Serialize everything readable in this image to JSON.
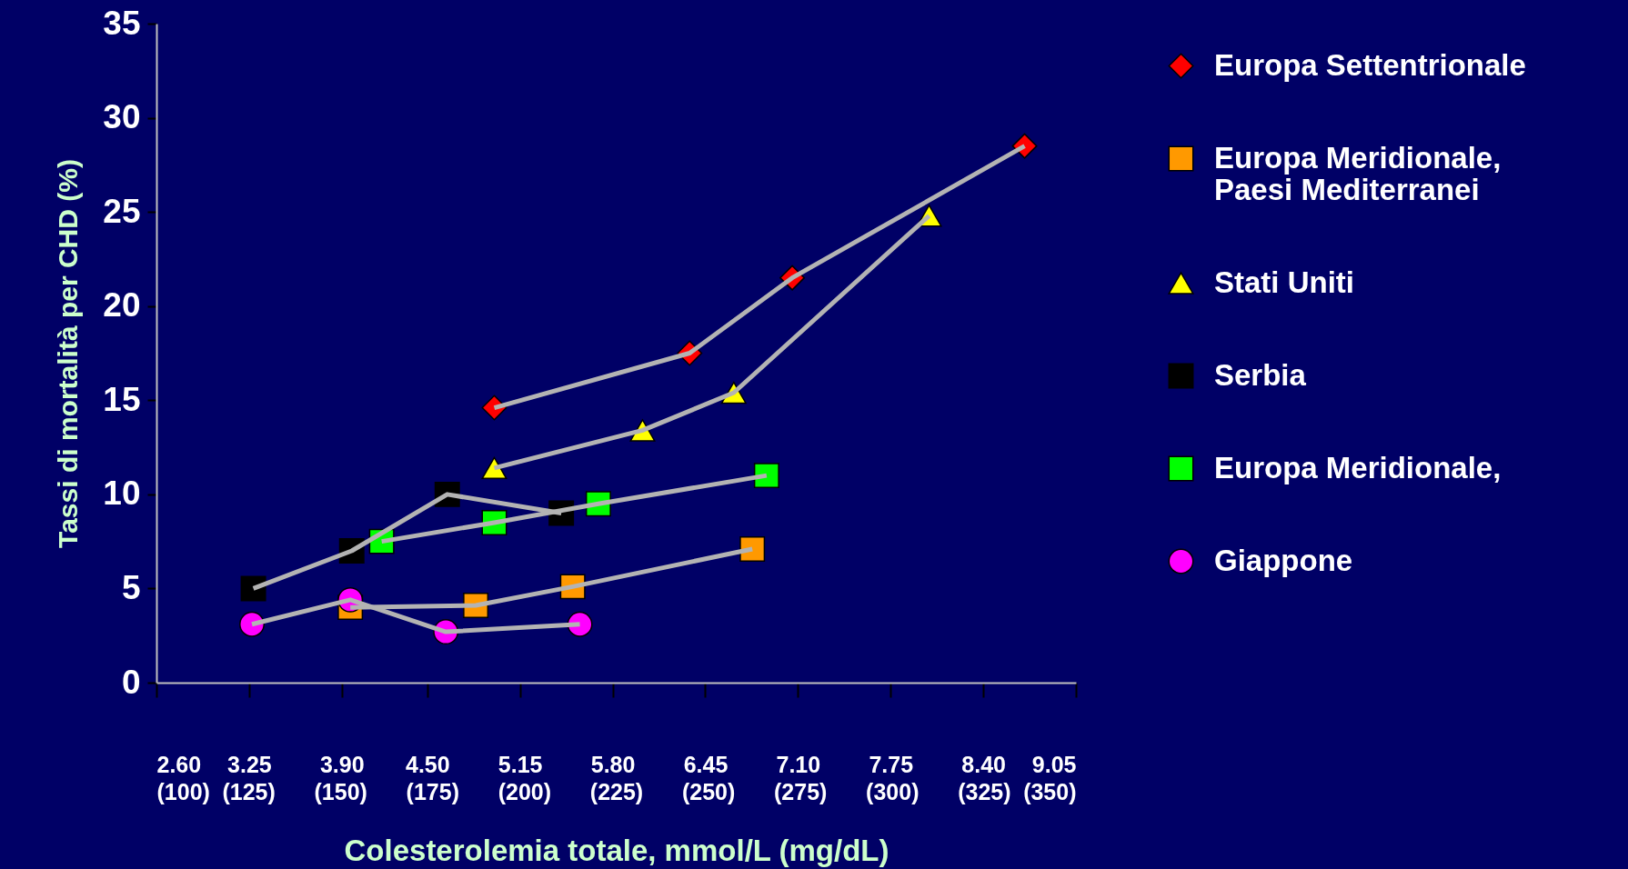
{
  "chart_data": {
    "type": "line",
    "xlabel": "Colesterolemia totale, mmol/L (mg/dL)",
    "ylabel": "Tassi di mortalità per CHD  (%)",
    "xlim": [
      2.6,
      9.05
    ],
    "ylim": [
      0,
      35
    ],
    "xticks": [
      {
        "value": 2.6,
        "label": "2.60"
      },
      3.25,
      {
        "value": 3.9,
        "label": "3.90"
      },
      {
        "value": 4.5,
        "label": "4.50"
      },
      5.15,
      {
        "value": 5.8,
        "label": "5.80"
      },
      6.45,
      {
        "value": 7.1,
        "label": "7.10"
      },
      7.75,
      {
        "value": 8.4,
        "label": "8.40"
      },
      9.05
    ],
    "x2lim": [
      100,
      350
    ],
    "x2ticks": [
      {
        "value": 100,
        "label": "(100)"
      },
      {
        "value": 125,
        "label": "(125)"
      },
      {
        "value": 150,
        "label": "(150)"
      },
      {
        "value": 175,
        "label": "(175)"
      },
      {
        "value": 200,
        "label": "(200)"
      },
      {
        "value": 225,
        "label": "(225)"
      },
      {
        "value": 250,
        "label": "(250)"
      },
      {
        "value": 275,
        "label": "(275)"
      },
      {
        "value": 300,
        "label": "(300)"
      },
      {
        "value": 325,
        "label": "(325)"
      },
      {
        "value": 350,
        "label": "(350)"
      }
    ],
    "yticks": [
      0,
      5,
      10,
      15,
      20,
      25,
      30,
      35
    ],
    "grid": false,
    "legend": "right",
    "line_style": "solid",
    "series": [
      {
        "name": "Europa Settentrionale",
        "color": "#ff0000",
        "marker": "diamond",
        "x": [
          4.97,
          6.34,
          7.06,
          8.69
        ],
        "values": [
          14.6,
          17.5,
          21.5,
          28.5
        ]
      },
      {
        "name": "Europa Meridionale, Paesi Mediterranei",
        "color": "#ff9900",
        "marker": "square",
        "x": [
          3.96,
          4.84,
          5.52,
          6.78
        ],
        "values": [
          4.0,
          4.1,
          5.1,
          7.1
        ]
      },
      {
        "name": "Stati Uniti",
        "color": "#ffff00",
        "marker": "triangle",
        "x": [
          4.97,
          6.01,
          6.65,
          8.02
        ],
        "values": [
          11.4,
          13.4,
          15.4,
          24.8
        ]
      },
      {
        "name": "Serbia",
        "color": "#000000",
        "marker": "square",
        "x": [
          3.28,
          3.97,
          4.64,
          5.44
        ],
        "values": [
          5.0,
          7.0,
          10.0,
          9.0
        ]
      },
      {
        "name": "Europa Meridionale,",
        "color": "#00ff00",
        "marker": "square",
        "x": [
          4.18,
          4.97,
          5.7,
          6.88
        ],
        "values": [
          7.5,
          8.5,
          9.5,
          11.0
        ]
      },
      {
        "name": "Giappone",
        "color": "#ff00ff",
        "marker": "circle",
        "x": [
          3.27,
          3.96,
          4.63,
          5.57
        ],
        "values": [
          3.1,
          4.4,
          2.7,
          3.1
        ]
      }
    ]
  }
}
